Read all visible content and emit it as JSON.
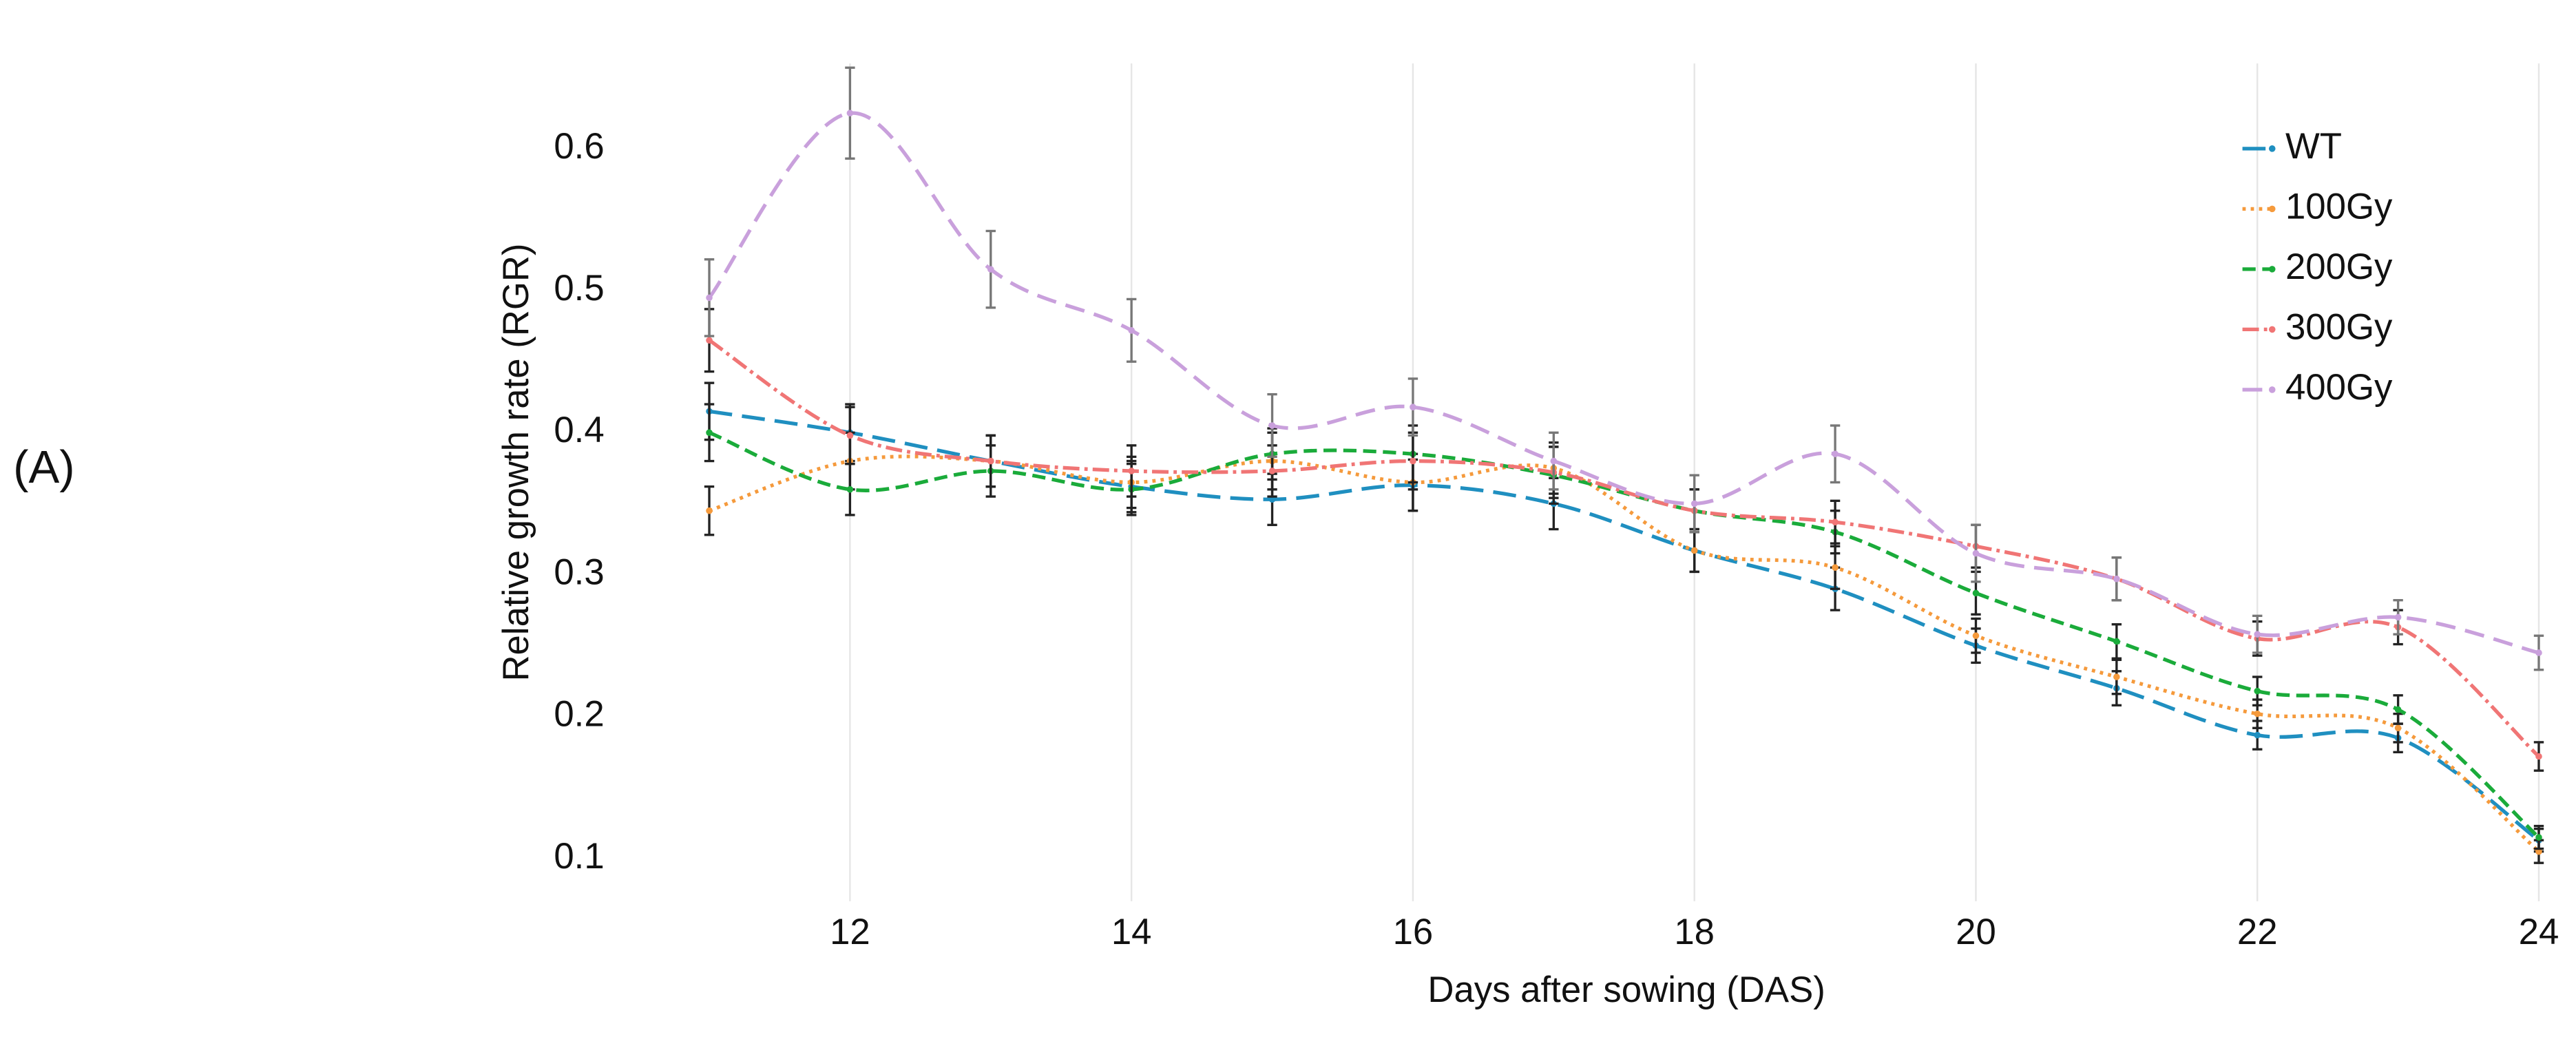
{
  "panel_label": "(A)",
  "chart_data": {
    "type": "line",
    "x_label": "Days after sowing (DAS)",
    "y_label": "Relative growth rate (RGR)",
    "x": [
      11,
      12,
      13,
      14,
      15,
      16,
      17,
      18,
      19,
      20,
      21,
      22,
      23,
      24
    ],
    "xlim": [
      10.9,
      24.1
    ],
    "xticks": [
      12,
      14,
      16,
      18,
      20,
      22,
      24
    ],
    "ylim": [
      0.07,
      0.66
    ],
    "yticks": [
      0.1,
      0.2,
      0.3,
      0.4,
      0.5,
      0.6
    ],
    "grid": true,
    "legend": "upper right",
    "series": [
      {
        "name": "WT",
        "color": "#1f8fc0",
        "values": [
          0.415,
          0.4,
          0.38,
          0.362,
          0.353,
          0.363,
          0.35,
          0.317,
          0.29,
          0.25,
          0.22,
          0.187,
          0.185,
          0.113
        ],
        "errors": [
          0.02,
          0.02,
          0.018,
          0.018,
          0.018,
          0.018,
          0.018,
          0.015,
          0.015,
          0.012,
          0.012,
          0.01,
          0.01,
          0.008
        ]
      },
      {
        "name": "100Gy",
        "color": "#f59a3c",
        "values": [
          0.345,
          0.38,
          0.38,
          0.365,
          0.38,
          0.365,
          0.375,
          0.317,
          0.305,
          0.257,
          0.228,
          0.202,
          0.192,
          0.105
        ],
        "errors": [
          0.017,
          0.02,
          0.018,
          0.018,
          0.02,
          0.02,
          0.018,
          0.015,
          0.015,
          0.012,
          0.012,
          0.01,
          0.01,
          0.008
        ]
      },
      {
        "name": "200Gy",
        "color": "#1aab3a",
        "values": [
          0.4,
          0.36,
          0.373,
          0.36,
          0.385,
          0.385,
          0.37,
          0.345,
          0.33,
          0.287,
          0.253,
          0.218,
          0.205,
          0.115
        ],
        "errors": [
          0.02,
          0.018,
          0.018,
          0.018,
          0.018,
          0.02,
          0.02,
          0.015,
          0.015,
          0.015,
          0.012,
          0.01,
          0.01,
          0.008
        ]
      },
      {
        "name": "300Gy",
        "color": "#f07575",
        "values": [
          0.465,
          0.398,
          0.38,
          0.373,
          0.373,
          0.38,
          0.372,
          0.345,
          0.337,
          0.32,
          0.297,
          0.255,
          0.263,
          0.172
        ],
        "errors": [
          0.022,
          0.02,
          0.018,
          0.018,
          0.018,
          0.02,
          0.018,
          0.015,
          0.015,
          0.015,
          0.015,
          0.012,
          0.012,
          0.01
        ]
      },
      {
        "name": "400Gy",
        "color": "#c9a0dc",
        "values": [
          0.495,
          0.625,
          0.515,
          0.472,
          0.405,
          0.418,
          0.38,
          0.35,
          0.385,
          0.315,
          0.297,
          0.258,
          0.27,
          0.245
        ],
        "errors": [
          0.027,
          0.032,
          0.027,
          0.022,
          0.022,
          0.02,
          0.02,
          0.02,
          0.02,
          0.02,
          0.015,
          0.013,
          0.012,
          0.012
        ]
      }
    ]
  }
}
